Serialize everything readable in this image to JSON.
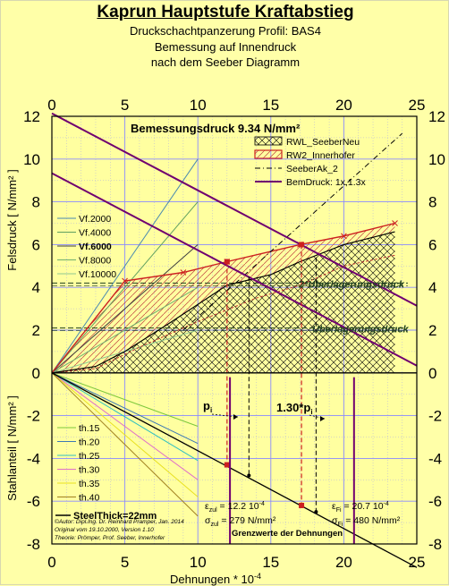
{
  "header": {
    "title": "Kaprun Hauptstufe Kraftabstieg",
    "subtitle1": "Druckschachtpanzerung Profil: BAS4",
    "subtitle2": "Bemessung auf Innendruck",
    "subtitle3": "nach dem Seeber Diagramm"
  },
  "colors": {
    "background": "#ffffa8",
    "purple": "#700070",
    "red": "#cc2020",
    "black": "#000000"
  },
  "chart_data": {
    "type": "line",
    "xlabel": "Dehnungen * 10",
    "xlabel_exp": "-4",
    "ylabel_top": "Felsdruck [ N/mm² ]",
    "ylabel_bottom": "Stahlanteil [ N/mm² ]",
    "xlim": [
      0,
      25
    ],
    "ylim": [
      -8,
      12
    ],
    "xticks": [
      0,
      5,
      10,
      15,
      20,
      25
    ],
    "yticks": [
      -8,
      -6,
      -4,
      -2,
      0,
      2,
      4,
      6,
      8,
      10,
      12
    ],
    "grid": true,
    "bemessungsdruck_label": "Bemessungsdruck 9.34 N/mm²",
    "legend_main": [
      {
        "name": "RWL_SeeberNeu",
        "style": "hatch-black"
      },
      {
        "name": "RW2_Innerhofer",
        "style": "hatch-red"
      },
      {
        "name": "SeeberAk_2",
        "style": "dashdot-black"
      },
      {
        "name": "BemDruck: 1x,1.3x",
        "style": "solid-purple"
      }
    ],
    "vf_lines": [
      {
        "name": "Vf.2000",
        "color": "#4a8ab0",
        "x": [
          0,
          10
        ],
        "y": [
          0,
          10
        ]
      },
      {
        "name": "Vf.4000",
        "color": "#60a060",
        "x": [
          0,
          10
        ],
        "y": [
          0,
          8
        ]
      },
      {
        "name": "Vf.6000",
        "color": "#404040",
        "x": [
          0,
          10
        ],
        "y": [
          0,
          6
        ]
      },
      {
        "name": "Vf.8000",
        "color": "#70b070",
        "x": [
          0,
          10
        ],
        "y": [
          0,
          4
        ]
      },
      {
        "name": "Vf.10000",
        "color": "#90c890",
        "x": [
          0,
          10
        ],
        "y": [
          0,
          2
        ]
      }
    ],
    "th_lines": [
      {
        "name": "th.15",
        "color": "#7cc83c",
        "x": [
          0,
          10
        ],
        "y": [
          0,
          -2.5
        ]
      },
      {
        "name": "th.20",
        "color": "#3c78b4",
        "x": [
          0,
          10
        ],
        "y": [
          0,
          -3.3
        ]
      },
      {
        "name": "th.25",
        "color": "#30c0c0",
        "x": [
          0,
          10
        ],
        "y": [
          0,
          -4.1
        ]
      },
      {
        "name": "th.30",
        "color": "#e070c8",
        "x": [
          0,
          10
        ],
        "y": [
          0,
          -5.0
        ]
      },
      {
        "name": "th.35",
        "color": "#e8e020",
        "x": [
          0,
          10
        ],
        "y": [
          0,
          -5.8
        ]
      },
      {
        "name": "th.40",
        "color": "#a08020",
        "x": [
          0,
          10
        ],
        "y": [
          0,
          -6.7
        ]
      }
    ],
    "steel_thick": {
      "name": "SteelThick=22mm",
      "x": [
        0,
        25
      ],
      "y": [
        0,
        -9.1
      ]
    },
    "bemdruck_lines": [
      {
        "name": "BemDruck 1x",
        "x": [
          0,
          25
        ],
        "y": [
          9.34,
          0.34
        ]
      },
      {
        "name": "BemDruck 1.3x",
        "x": [
          0,
          25
        ],
        "y": [
          12.14,
          3.14
        ]
      }
    ],
    "seeber_curve": {
      "x": [
        0,
        3,
        5,
        8,
        12,
        15,
        17,
        20,
        23.5
      ],
      "y": [
        0,
        0.3,
        1.0,
        2.3,
        4.1,
        4.6,
        5.2,
        6.0,
        6.6
      ]
    },
    "innerhofer_curve": {
      "x": [
        0,
        5,
        9,
        12,
        17,
        20,
        23.5
      ],
      "y": [
        0,
        4.3,
        4.7,
        5.2,
        6.0,
        6.4,
        7.0
      ]
    },
    "seeber_lower": {
      "x": [
        0,
        3,
        6,
        10,
        14,
        17,
        19,
        20,
        23.5
      ],
      "y": [
        0,
        0.2,
        1.2,
        2.4,
        3.5,
        4.1,
        4.7,
        5.0,
        5.5
      ]
    },
    "seeber_ak2": {
      "x": [
        9,
        24
      ],
      "y": [
        2,
        11.2
      ]
    },
    "upper_dash_y": 4.2,
    "lower_dash_y": 2.1,
    "ueberlagerung_label": "2*Überlagerungsdruck",
    "lagerung_label": "Überlagerungsdruck",
    "pi_label": "p",
    "pi_sub": "i",
    "pi13_label": "1.30*p",
    "pi13_sub": "i",
    "pi_x": 12.0,
    "pi_y": 5.2,
    "pi13_x": 17.1,
    "pi13_y": 6.0,
    "eps_zul_value": "= 12.2 10",
    "eps_zul_exp": "-4",
    "sig_zul_value": "= 279 N/mm²",
    "eps_fi_value": "= 20.7 10",
    "eps_fi_exp": "-4",
    "sig_fi_value": "= 480 N/mm²",
    "eps_sym": "ε",
    "sig_sym": "σ",
    "zul_sub": "zul",
    "fi_sub": "Fi",
    "grenzwerte_label": "Grenzwerte der Dehnungen",
    "vline_left_x": 12.2,
    "vline_right_x": 20.7,
    "vline_dash1_x": 13.5,
    "vline_dash2_x": 18.1,
    "author": [
      "©Autor: Dipl.Ing. Dr. Reinhard Pramper, Jan. 2014",
      "Original vom 19.10.2000, Version 1.10",
      "Theorie: Prömper, Prof. Seeber, Innerhofer"
    ]
  }
}
